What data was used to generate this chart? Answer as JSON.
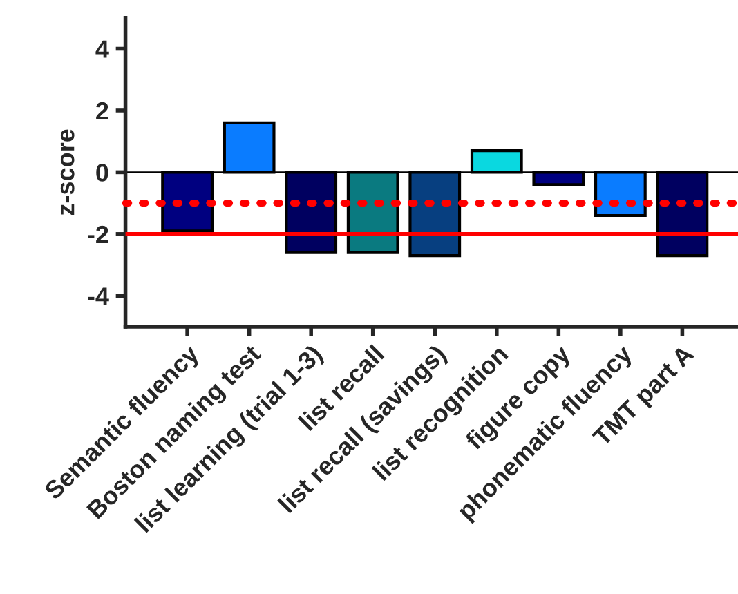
{
  "chart_data": {
    "type": "bar",
    "ylabel": "z-score",
    "categories": [
      "Semantic fluency",
      "Boston naming test",
      "list learning (trial 1-3)",
      "list recall",
      "list recall (savings)",
      "list recognition",
      "figure copy",
      "phonematic fluency",
      "TMT part A"
    ],
    "values": [
      -1.9,
      1.6,
      -2.6,
      -2.6,
      -2.7,
      0.7,
      -0.4,
      -1.4,
      -2.7
    ],
    "colors": [
      "#000080",
      "#0a7cff",
      "#000060",
      "#0a7a80",
      "#073f80",
      "#0ad8e0",
      "#000080",
      "#0a7cff",
      "#000060"
    ],
    "ylim": [
      -5,
      5
    ],
    "yticks": [
      {
        "value": -4,
        "label": "-4"
      },
      {
        "value": -2,
        "label": "-2"
      },
      0,
      2,
      4
    ],
    "ref_lines": [
      {
        "axis": "y",
        "value": 0,
        "color": "#000000",
        "line_style": "solid"
      },
      {
        "axis": "y",
        "value": -1,
        "color": "#ff0000",
        "line_style": "dotted"
      },
      {
        "axis": "y",
        "value": -2,
        "color": "#ff0000",
        "line_style": "solid"
      }
    ],
    "grid": false,
    "legend": false
  }
}
